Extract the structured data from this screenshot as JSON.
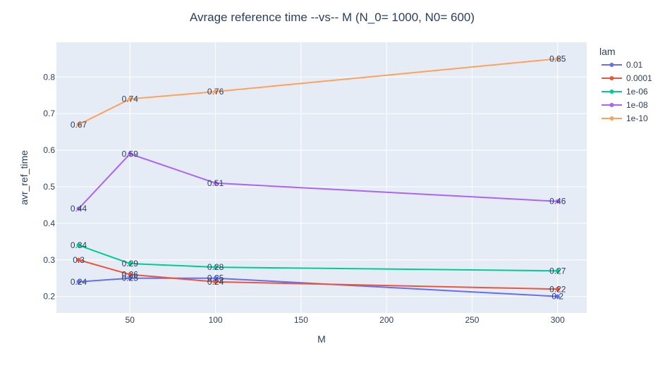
{
  "chart_data": {
    "type": "line",
    "title": "Avrage reference time --vs-- M  (N_0= 1000, N0= 600)",
    "xlabel": "M",
    "ylabel": "avr_ref_time",
    "legend_title": "lam",
    "legend_position": "right",
    "grid": true,
    "xlim": [
      7,
      317
    ],
    "ylim": [
      0.155,
      0.895
    ],
    "x_ticks": [
      50,
      100,
      150,
      200,
      250,
      300
    ],
    "y_ticks": [
      0.2,
      0.3,
      0.4,
      0.5,
      0.6,
      0.7,
      0.8
    ],
    "series": [
      {
        "name": "0.01",
        "color": "#636efa",
        "x": [
          20,
          50,
          100,
          300
        ],
        "y": [
          0.24,
          0.25,
          0.25,
          0.2
        ],
        "labels": [
          "0.24",
          "0.25",
          "0.25",
          "0.2"
        ]
      },
      {
        "name": "0.0001",
        "color": "#ef553b",
        "x": [
          20,
          50,
          100,
          300
        ],
        "y": [
          0.3,
          0.26,
          0.24,
          0.22
        ],
        "labels": [
          "0.3",
          "0.26",
          "0.24",
          "0.22"
        ]
      },
      {
        "name": "1e-06",
        "color": "#00cc96",
        "x": [
          20,
          50,
          100,
          300
        ],
        "y": [
          0.34,
          0.29,
          0.28,
          0.27
        ],
        "labels": [
          "0.34",
          "0.29",
          "0.28",
          "0.27"
        ]
      },
      {
        "name": "1e-08",
        "color": "#ab63fa",
        "x": [
          20,
          50,
          100,
          300
        ],
        "y": [
          0.44,
          0.59,
          0.51,
          0.46
        ],
        "labels": [
          "0.44",
          "0.59",
          "0.51",
          "0.46"
        ]
      },
      {
        "name": "1e-10",
        "color": "#ffa15a",
        "x": [
          20,
          50,
          100,
          300
        ],
        "y": [
          0.67,
          0.74,
          0.76,
          0.85
        ],
        "labels": [
          "0.67",
          "0.74",
          "0.76",
          "0.85"
        ]
      }
    ]
  }
}
